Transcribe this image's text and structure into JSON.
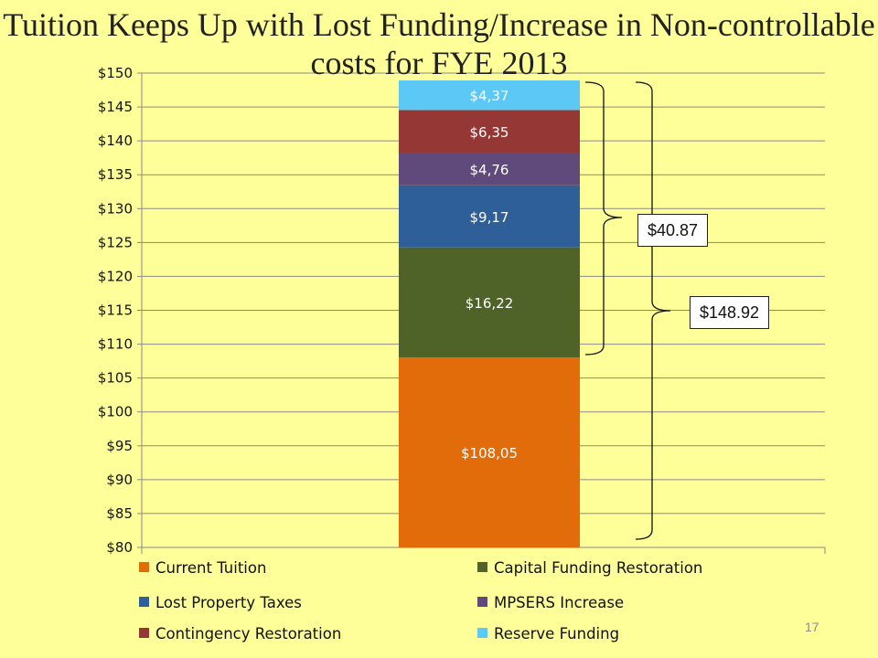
{
  "slide": {
    "title": "Tuition Keeps Up with Lost Funding/Increase in Non-controllable costs for FYE 2013",
    "page_number": "17"
  },
  "callouts": {
    "increase_total": "$40.87",
    "grand_total": "$148.92"
  },
  "chart_data": {
    "type": "bar",
    "stacked": true,
    "ylim": [
      80,
      150
    ],
    "ytick_step": 5,
    "ytick_labels": [
      "$80",
      "$85",
      "$90",
      "$95",
      "$100",
      "$105",
      "$110",
      "$115",
      "$120",
      "$125",
      "$130",
      "$135",
      "$140",
      "$145",
      "$150"
    ],
    "grid": true,
    "legend_position": "bottom",
    "series": [
      {
        "name": "Current Tuition",
        "value": 108.05,
        "label": "$108,05",
        "color": "#E36C0A"
      },
      {
        "name": "Capital Funding Restoration",
        "value": 16.22,
        "label": "$16,22",
        "color": "#4F6228"
      },
      {
        "name": "Lost Property Taxes",
        "value": 9.17,
        "label": "$9,17",
        "color": "#2F5F98"
      },
      {
        "name": "MPSERS Increase",
        "value": 4.76,
        "label": "$4,76",
        "color": "#604A7B"
      },
      {
        "name": "Contingency Restoration",
        "value": 6.35,
        "label": "$6,35",
        "color": "#953735"
      },
      {
        "name": "Reserve Funding",
        "value": 4.37,
        "label": "$4,37",
        "color": "#5BC8F5"
      }
    ],
    "legend_order": [
      "Current Tuition",
      "Capital Funding Restoration",
      "Lost Property Taxes",
      "MPSERS Increase",
      "Contingency Restoration",
      "Reserve Funding"
    ]
  }
}
